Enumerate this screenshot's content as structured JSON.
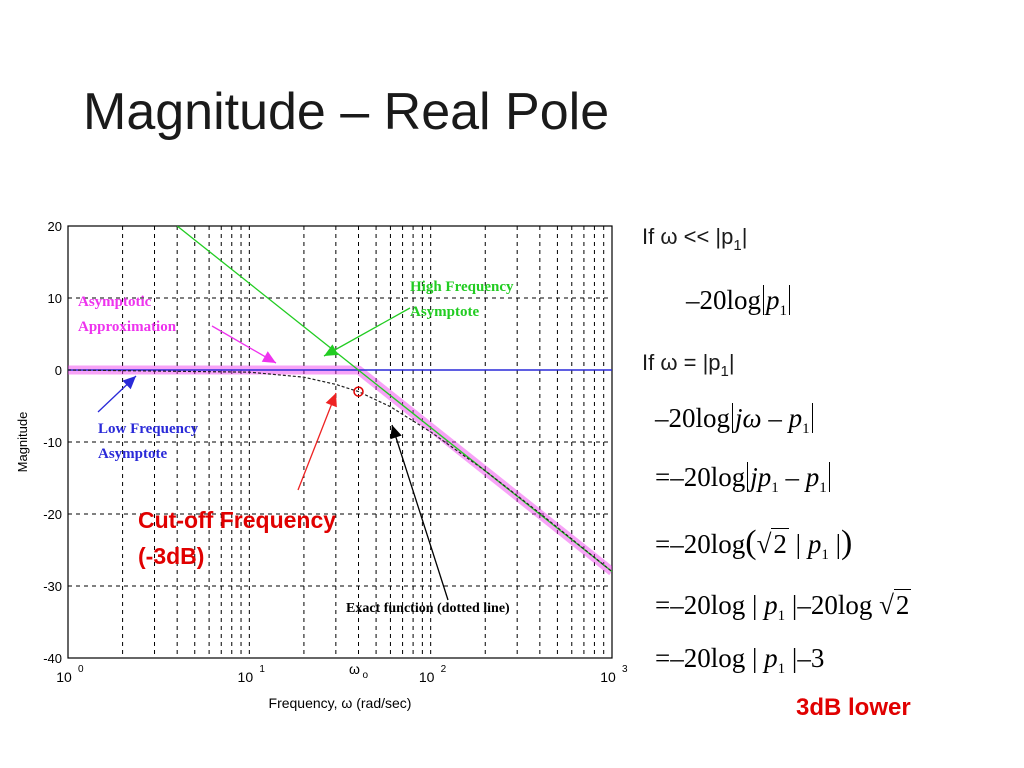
{
  "slide": {
    "title": "Magnitude – Real Pole"
  },
  "chart_data": {
    "type": "line",
    "xscale": "log",
    "xlim": [
      1,
      1000
    ],
    "ylim": [
      -40,
      20
    ],
    "grid": true,
    "xlabel": "Frequency, ω (rad/sec)",
    "ylabel": "Magnitude",
    "x_ticks": [
      {
        "base": "10",
        "exp": "0",
        "value": 1
      },
      {
        "base": "10",
        "exp": "1",
        "value": 10
      },
      {
        "base": "10",
        "exp": "2",
        "value": 100
      },
      {
        "base": "10",
        "exp": "3",
        "value": 1000
      }
    ],
    "y_ticks": [
      "20",
      "10",
      "0",
      "-10",
      "-20",
      "-30",
      "-40"
    ],
    "y_tick_values": [
      20,
      10,
      0,
      -10,
      -20,
      -30,
      -40
    ],
    "omega0_label": "ω",
    "omega0_sub": "o",
    "pole_frequency": 40,
    "series": [
      {
        "points": [
          [
            1,
            0
          ],
          [
            1000,
            0
          ]
        ],
        "color": "#2a2ad8"
      },
      {
        "points": [
          [
            4,
            20
          ],
          [
            1000,
            -28
          ]
        ],
        "color": "#22cc22"
      },
      {
        "points": [
          [
            1,
            0
          ],
          [
            40,
            0
          ],
          [
            1000,
            -28
          ]
        ],
        "color": "#ee33ee"
      },
      {
        "points": [
          [
            1,
            0
          ],
          [
            10,
            -0.3
          ],
          [
            20,
            -1
          ],
          [
            30,
            -2
          ],
          [
            40,
            -3
          ],
          [
            60,
            -5.1
          ],
          [
            100,
            -8.6
          ],
          [
            200,
            -14
          ],
          [
            400,
            -19.9
          ],
          [
            1000,
            -28
          ]
        ],
        "color": "#222222"
      }
    ],
    "cutoff_point": {
      "x": 40,
      "y": -3
    },
    "annotations": {
      "asymptotic": [
        "Asymptotic",
        "Approximation"
      ],
      "high": [
        "High Frequency",
        "Asymptote"
      ],
      "low": [
        "Low Frequency",
        "Asymptote"
      ],
      "exact": "Exact function (dotted line)",
      "cutoff": [
        "Cut-off Frequency",
        "(-3dB)"
      ]
    }
  },
  "equations": {
    "if1": {
      "prefix": "If ω << |p",
      "sub": "1",
      "suffix": "|"
    },
    "if2": {
      "prefix": "If ω = |p",
      "sub": "1",
      "suffix": "|"
    },
    "minus": "–",
    "eq_sign": "=",
    "neg20log": "–20log",
    "twenty_log": "20log",
    "p": "p",
    "one": "1",
    "j": "j",
    "omega": "ω",
    "two": "2",
    "three": "3",
    "minus3": "–3",
    "lower_note": "3dB lower"
  }
}
